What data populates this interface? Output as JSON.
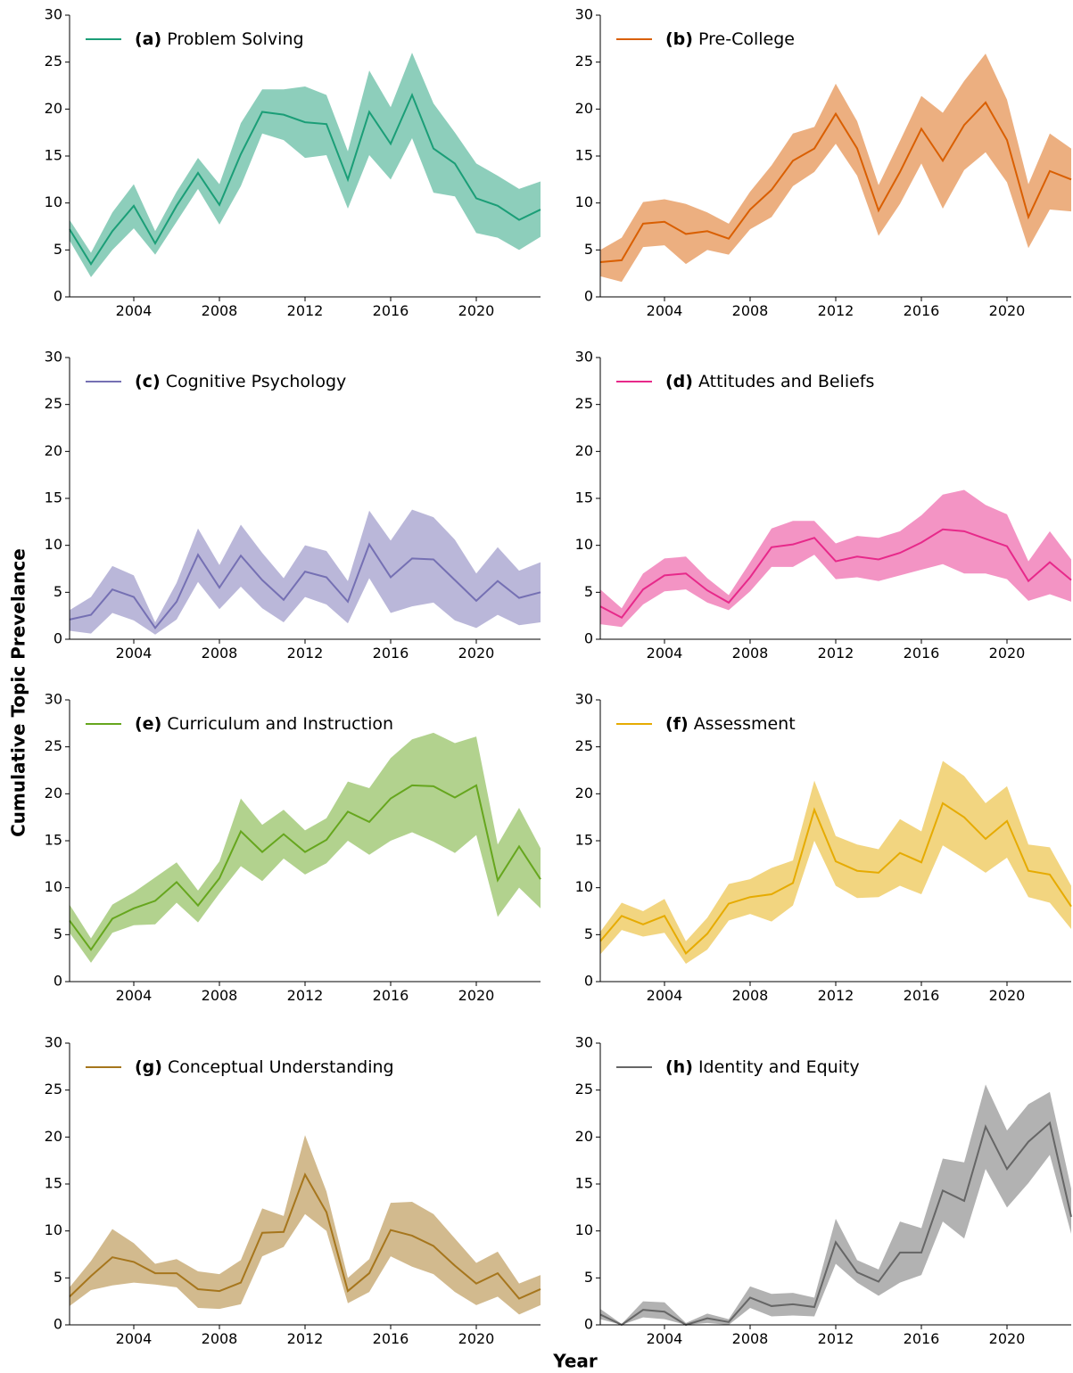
{
  "figure": {
    "xlabel": "Year",
    "ylabel": "Cumulative Topic Prevelance"
  },
  "chart_data": [
    {
      "type": "line",
      "xlim": [
        2001,
        2023
      ],
      "ylim": [
        0,
        30
      ],
      "xticks": [
        2004,
        2008,
        2012,
        2016,
        2020
      ],
      "yticks": [
        0,
        5,
        10,
        15,
        20,
        25,
        30
      ],
      "x": [
        2001,
        2002,
        2003,
        2004,
        2005,
        2006,
        2007,
        2008,
        2009,
        2010,
        2011,
        2012,
        2013,
        2014,
        2015,
        2016,
        2017,
        2018,
        2019,
        2020,
        2021,
        2022,
        2023
      ],
      "series": [
        {
          "tag": "(a)",
          "name": "Problem Solving",
          "color": "#1b9e77",
          "values": [
            7.2,
            3.5,
            7.0,
            9.7,
            5.7,
            9.7,
            13.2,
            9.8,
            15.2,
            19.7,
            19.4,
            18.6,
            18.4,
            12.5,
            19.7,
            16.3,
            21.5,
            15.8,
            14.2,
            10.5,
            9.7,
            8.2,
            9.3
          ],
          "upper": [
            8.2,
            4.7,
            9.0,
            12.0,
            7.0,
            11.2,
            14.8,
            12.0,
            18.5,
            22.1,
            22.1,
            22.4,
            21.5,
            15.5,
            24.1,
            20.2,
            26.0,
            20.6,
            17.5,
            14.2,
            12.9,
            11.5,
            12.3
          ],
          "lower": [
            6.0,
            2.1,
            5.0,
            7.3,
            4.5,
            8.0,
            11.5,
            7.7,
            11.8,
            17.4,
            16.7,
            14.8,
            15.1,
            9.4,
            15.1,
            12.5,
            16.9,
            11.1,
            10.7,
            6.8,
            6.3,
            5.0,
            6.4
          ]
        }
      ]
    },
    {
      "type": "line",
      "xlim": [
        2001,
        2023
      ],
      "ylim": [
        0,
        30
      ],
      "xticks": [
        2004,
        2008,
        2012,
        2016,
        2020
      ],
      "yticks": [
        0,
        5,
        10,
        15,
        20,
        25,
        30
      ],
      "x": [
        2001,
        2002,
        2003,
        2004,
        2005,
        2006,
        2007,
        2008,
        2009,
        2010,
        2011,
        2012,
        2013,
        2014,
        2015,
        2016,
        2017,
        2018,
        2019,
        2020,
        2021,
        2022,
        2023
      ],
      "series": [
        {
          "tag": "(b)",
          "name": "Pre-College",
          "color": "#d95f02",
          "values": [
            3.7,
            3.9,
            7.8,
            8.0,
            6.7,
            7.0,
            6.2,
            9.3,
            11.4,
            14.5,
            15.8,
            19.5,
            15.8,
            9.2,
            13.3,
            17.9,
            14.5,
            18.3,
            20.7,
            16.7,
            8.5,
            13.4,
            12.5
          ],
          "upper": [
            5.0,
            6.3,
            10.1,
            10.4,
            9.9,
            9.0,
            7.8,
            11.2,
            14.0,
            17.4,
            18.1,
            22.7,
            18.7,
            11.9,
            16.6,
            21.4,
            19.6,
            23.0,
            25.9,
            21.0,
            12.0,
            17.4,
            15.8
          ],
          "lower": [
            2.2,
            1.6,
            5.3,
            5.5,
            3.5,
            5.0,
            4.5,
            7.2,
            8.5,
            11.8,
            13.3,
            16.3,
            12.9,
            6.5,
            9.9,
            14.2,
            9.4,
            13.5,
            15.4,
            12.2,
            5.2,
            9.3,
            9.1
          ]
        }
      ]
    },
    {
      "type": "line",
      "xlim": [
        2001,
        2023
      ],
      "ylim": [
        0,
        30
      ],
      "xticks": [
        2004,
        2008,
        2012,
        2016,
        2020
      ],
      "yticks": [
        0,
        5,
        10,
        15,
        20,
        25,
        30
      ],
      "x": [
        2001,
        2002,
        2003,
        2004,
        2005,
        2006,
        2007,
        2008,
        2009,
        2010,
        2011,
        2012,
        2013,
        2014,
        2015,
        2016,
        2017,
        2018,
        2019,
        2020,
        2021,
        2022,
        2023
      ],
      "series": [
        {
          "tag": "(c)",
          "name": "Cognitive Psychology",
          "color": "#7570b3",
          "values": [
            2.1,
            2.6,
            5.3,
            4.5,
            1.2,
            4.0,
            9.0,
            5.5,
            8.9,
            6.3,
            4.2,
            7.2,
            6.6,
            4.0,
            10.1,
            6.6,
            8.6,
            8.5,
            6.3,
            4.1,
            6.2,
            4.4,
            5.0
          ],
          "upper": [
            3.1,
            4.5,
            7.8,
            6.8,
            1.8,
            6.0,
            11.8,
            7.9,
            12.2,
            9.2,
            6.5,
            10.0,
            9.4,
            6.2,
            13.7,
            10.5,
            13.8,
            13.0,
            10.6,
            7.0,
            9.8,
            7.3,
            8.2
          ],
          "lower": [
            0.9,
            0.6,
            2.8,
            2.0,
            0.5,
            2.1,
            6.1,
            3.2,
            5.6,
            3.3,
            1.8,
            4.5,
            3.7,
            1.7,
            6.5,
            2.8,
            3.5,
            3.9,
            2.0,
            1.2,
            2.6,
            1.5,
            1.8
          ]
        }
      ]
    },
    {
      "type": "line",
      "xlim": [
        2001,
        2023
      ],
      "ylim": [
        0,
        30
      ],
      "xticks": [
        2004,
        2008,
        2012,
        2016,
        2020
      ],
      "yticks": [
        0,
        5,
        10,
        15,
        20,
        25,
        30
      ],
      "x": [
        2001,
        2002,
        2003,
        2004,
        2005,
        2006,
        2007,
        2008,
        2009,
        2010,
        2011,
        2012,
        2013,
        2014,
        2015,
        2016,
        2017,
        2018,
        2019,
        2020,
        2021,
        2022,
        2023
      ],
      "series": [
        {
          "tag": "(d)",
          "name": "Attitudes and Beliefs",
          "color": "#e7298a",
          "values": [
            3.5,
            2.3,
            5.3,
            6.8,
            7.0,
            5.2,
            3.9,
            6.6,
            9.8,
            10.1,
            10.8,
            8.3,
            8.8,
            8.5,
            9.2,
            10.3,
            11.7,
            11.5,
            10.7,
            9.9,
            6.2,
            8.2,
            6.3
          ],
          "upper": [
            5.3,
            3.3,
            7.0,
            8.6,
            8.8,
            6.5,
            4.7,
            8.2,
            11.8,
            12.6,
            12.6,
            10.2,
            11.0,
            10.8,
            11.5,
            13.2,
            15.4,
            15.9,
            14.3,
            13.3,
            8.3,
            11.5,
            8.5
          ],
          "lower": [
            1.6,
            1.3,
            3.7,
            5.1,
            5.3,
            3.9,
            3.1,
            5.1,
            7.7,
            7.7,
            9.0,
            6.4,
            6.6,
            6.2,
            6.8,
            7.4,
            8.0,
            7.0,
            7.0,
            6.4,
            4.1,
            4.8,
            4.0
          ]
        }
      ]
    },
    {
      "type": "line",
      "xlim": [
        2001,
        2023
      ],
      "ylim": [
        0,
        30
      ],
      "xticks": [
        2004,
        2008,
        2012,
        2016,
        2020
      ],
      "yticks": [
        0,
        5,
        10,
        15,
        20,
        25,
        30
      ],
      "x": [
        2001,
        2002,
        2003,
        2004,
        2005,
        2006,
        2007,
        2008,
        2009,
        2010,
        2011,
        2012,
        2013,
        2014,
        2015,
        2016,
        2017,
        2018,
        2019,
        2020,
        2021,
        2022,
        2023
      ],
      "series": [
        {
          "tag": "(e)",
          "name": "Curriculum and Instruction",
          "color": "#66a61e",
          "values": [
            6.5,
            3.4,
            6.7,
            7.8,
            8.6,
            10.6,
            8.1,
            11.0,
            16.0,
            13.8,
            15.7,
            13.8,
            15.1,
            18.1,
            17.0,
            19.5,
            20.9,
            20.8,
            19.6,
            20.9,
            10.8,
            14.4,
            10.9
          ],
          "upper": [
            8.2,
            4.6,
            8.2,
            9.5,
            11.1,
            12.7,
            9.7,
            12.8,
            19.5,
            16.7,
            18.3,
            16.1,
            17.4,
            21.3,
            20.6,
            23.8,
            25.8,
            26.5,
            25.4,
            26.1,
            14.6,
            18.5,
            14.2
          ],
          "lower": [
            5.2,
            2.0,
            5.2,
            6.0,
            6.1,
            8.4,
            6.3,
            9.4,
            12.3,
            10.7,
            13.1,
            11.4,
            12.6,
            15.0,
            13.5,
            15.0,
            15.9,
            14.9,
            13.7,
            15.6,
            6.9,
            10.0,
            7.8
          ]
        }
      ]
    },
    {
      "type": "line",
      "xlim": [
        2001,
        2023
      ],
      "ylim": [
        0,
        30
      ],
      "xticks": [
        2004,
        2008,
        2012,
        2016,
        2020
      ],
      "yticks": [
        0,
        5,
        10,
        15,
        20,
        25,
        30
      ],
      "x": [
        2001,
        2002,
        2003,
        2004,
        2005,
        2006,
        2007,
        2008,
        2009,
        2010,
        2011,
        2012,
        2013,
        2014,
        2015,
        2016,
        2017,
        2018,
        2019,
        2020,
        2021,
        2022,
        2023
      ],
      "series": [
        {
          "tag": "(f)",
          "name": "Assessment",
          "color": "#e6ab02",
          "values": [
            4.3,
            7.0,
            6.1,
            7.0,
            3.0,
            5.1,
            8.3,
            9.0,
            9.3,
            10.5,
            18.3,
            12.8,
            11.8,
            11.6,
            13.7,
            12.7,
            19.0,
            17.5,
            15.2,
            17.1,
            11.8,
            11.4,
            8.0
          ],
          "upper": [
            5.3,
            8.4,
            7.5,
            8.8,
            4.3,
            6.8,
            10.4,
            10.9,
            12.1,
            12.9,
            21.4,
            15.5,
            14.6,
            14.1,
            17.3,
            16.0,
            23.5,
            21.9,
            19.0,
            20.8,
            14.6,
            14.3,
            10.2
          ],
          "lower": [
            2.9,
            5.5,
            4.8,
            5.2,
            1.9,
            3.4,
            6.5,
            7.2,
            6.4,
            8.1,
            15.0,
            10.2,
            8.9,
            9.0,
            10.2,
            9.3,
            14.5,
            13.1,
            11.6,
            13.2,
            9.0,
            8.4,
            5.6
          ]
        }
      ]
    },
    {
      "type": "line",
      "xlim": [
        2001,
        2023
      ],
      "ylim": [
        0,
        30
      ],
      "xticks": [
        2004,
        2008,
        2012,
        2016,
        2020
      ],
      "yticks": [
        0,
        5,
        10,
        15,
        20,
        25,
        30
      ],
      "x": [
        2001,
        2002,
        2003,
        2004,
        2005,
        2006,
        2007,
        2008,
        2009,
        2010,
        2011,
        2012,
        2013,
        2014,
        2015,
        2016,
        2017,
        2018,
        2019,
        2020,
        2021,
        2022,
        2023
      ],
      "series": [
        {
          "tag": "(g)",
          "name": "Conceptual Understanding",
          "color": "#a6761d",
          "values": [
            3.0,
            5.2,
            7.2,
            6.7,
            5.5,
            5.5,
            3.8,
            3.6,
            4.5,
            9.8,
            9.9,
            16.0,
            12.0,
            3.6,
            5.5,
            10.1,
            9.5,
            8.4,
            6.3,
            4.4,
            5.5,
            2.8,
            3.8
          ],
          "upper": [
            4.0,
            6.8,
            10.2,
            8.7,
            6.5,
            7.0,
            5.7,
            5.4,
            6.9,
            12.4,
            11.6,
            20.2,
            14.2,
            5.0,
            7.0,
            13.0,
            13.1,
            11.8,
            9.2,
            6.6,
            7.8,
            4.4,
            5.3
          ],
          "lower": [
            2.0,
            3.7,
            4.2,
            4.5,
            4.3,
            4.0,
            1.8,
            1.7,
            2.2,
            7.3,
            8.3,
            11.8,
            10.0,
            2.3,
            3.5,
            7.3,
            6.2,
            5.4,
            3.5,
            2.1,
            3.0,
            1.1,
            2.1
          ]
        }
      ]
    },
    {
      "type": "line",
      "xlim": [
        2001,
        2023
      ],
      "ylim": [
        0,
        30
      ],
      "xticks": [
        2004,
        2008,
        2012,
        2016,
        2020
      ],
      "yticks": [
        0,
        5,
        10,
        15,
        20,
        25,
        30
      ],
      "x": [
        2001,
        2002,
        2003,
        2004,
        2005,
        2006,
        2007,
        2008,
        2009,
        2010,
        2011,
        2012,
        2013,
        2014,
        2015,
        2016,
        2017,
        2018,
        2019,
        2020,
        2021,
        2022,
        2023
      ],
      "series": [
        {
          "tag": "(h)",
          "name": "Identity and Equity",
          "color": "#666666",
          "values": [
            1.1,
            0.0,
            1.6,
            1.4,
            0.0,
            0.7,
            0.3,
            2.9,
            2.0,
            2.2,
            1.9,
            8.8,
            5.6,
            4.6,
            7.7,
            7.7,
            14.3,
            13.2,
            21.1,
            16.6,
            19.5,
            21.5,
            11.5
          ],
          "upper": [
            1.7,
            0.1,
            2.5,
            2.4,
            0.2,
            1.2,
            0.6,
            4.1,
            3.3,
            3.4,
            2.9,
            11.3,
            6.9,
            5.9,
            11.0,
            10.3,
            17.7,
            17.3,
            25.6,
            20.7,
            23.5,
            24.8,
            14.5
          ],
          "lower": [
            0.6,
            0.0,
            0.8,
            0.6,
            0.0,
            0.2,
            0.0,
            1.8,
            0.9,
            1.0,
            0.9,
            6.5,
            4.5,
            3.1,
            4.5,
            5.3,
            11.0,
            9.2,
            16.6,
            12.5,
            15.1,
            18.1,
            9.7
          ]
        }
      ]
    }
  ]
}
